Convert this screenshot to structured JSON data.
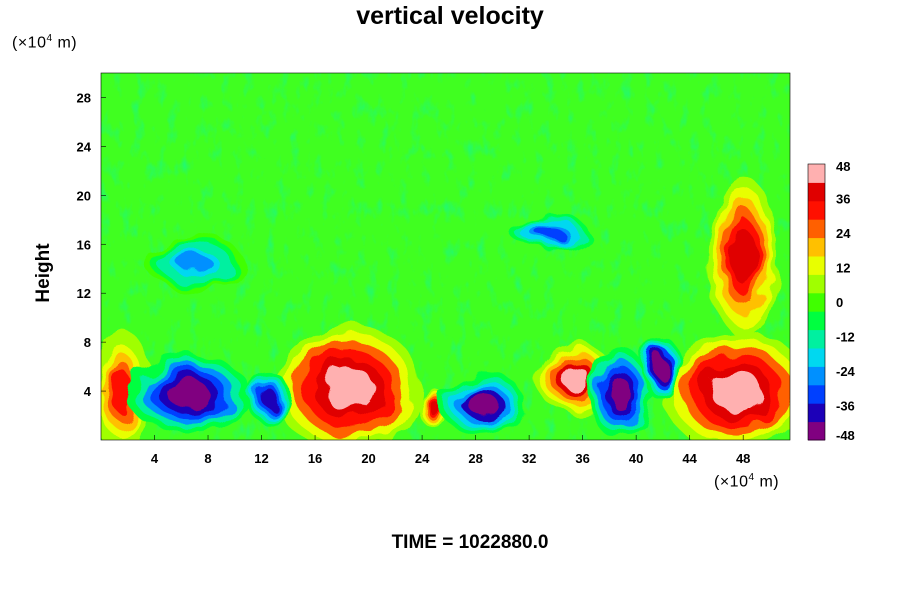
{
  "chart_data": {
    "type": "heatmap",
    "title": "vertical velocity",
    "ylabel": "Height",
    "x_unit_label": {
      "prefix": "(×10",
      "exp": "4",
      "suffix": " m)"
    },
    "y_unit_label": {
      "prefix": "(×10",
      "exp": "4",
      "suffix": " m)"
    },
    "xlim": [
      0,
      51.5
    ],
    "ylim": [
      0,
      30
    ],
    "x_ticks": [
      4,
      8,
      12,
      16,
      20,
      24,
      28,
      32,
      36,
      40,
      44,
      48
    ],
    "y_ticks": [
      4,
      8,
      12,
      16,
      20,
      24,
      28
    ],
    "colorbar": {
      "range": [
        -48,
        48
      ],
      "ticks": [
        48,
        36,
        24,
        12,
        0,
        -12,
        -24,
        -36,
        -48
      ],
      "colors": [
        "#800080",
        "#1c00b8",
        "#0040ff",
        "#0090ff",
        "#00d8f0",
        "#00f0a0",
        "#00ff40",
        "#40ff00",
        "#a0ff00",
        "#e8ff00",
        "#ffc000",
        "#ff6000",
        "#ff1000",
        "#e00000",
        "#ffb0b0"
      ]
    },
    "features": [
      {
        "x": 18.5,
        "y": 4.2,
        "rx": 3.8,
        "ry": 3.6,
        "value": 48
      },
      {
        "x": 47.5,
        "y": 4.0,
        "rx": 3.8,
        "ry": 3.4,
        "value": 48
      },
      {
        "x": 35.5,
        "y": 5.0,
        "rx": 2.0,
        "ry": 2.0,
        "value": 44
      },
      {
        "x": 48.0,
        "y": 15.0,
        "rx": 1.8,
        "ry": 4.5,
        "value": 40
      },
      {
        "x": 1.5,
        "y": 4.0,
        "rx": 1.6,
        "ry": 3.5,
        "value": 30
      },
      {
        "x": 25.0,
        "y": 2.5,
        "rx": 0.9,
        "ry": 1.0,
        "value": 38
      },
      {
        "x": 6.5,
        "y": 3.8,
        "rx": 3.2,
        "ry": 2.2,
        "value": -48
      },
      {
        "x": 28.5,
        "y": 3.0,
        "rx": 2.2,
        "ry": 1.8,
        "value": -44
      },
      {
        "x": 38.8,
        "y": 3.8,
        "rx": 1.6,
        "ry": 2.6,
        "value": -48
      },
      {
        "x": 41.8,
        "y": 6.0,
        "rx": 1.0,
        "ry": 1.8,
        "value": -46
      },
      {
        "x": 33.5,
        "y": 17.0,
        "rx": 2.0,
        "ry": 1.0,
        "value": -34
      },
      {
        "x": 7.0,
        "y": 14.5,
        "rx": 2.5,
        "ry": 1.6,
        "value": -24
      },
      {
        "x": 12.5,
        "y": 3.5,
        "rx": 1.2,
        "ry": 1.4,
        "value": -36
      }
    ]
  },
  "time_label": "TIME = 1022880.0"
}
